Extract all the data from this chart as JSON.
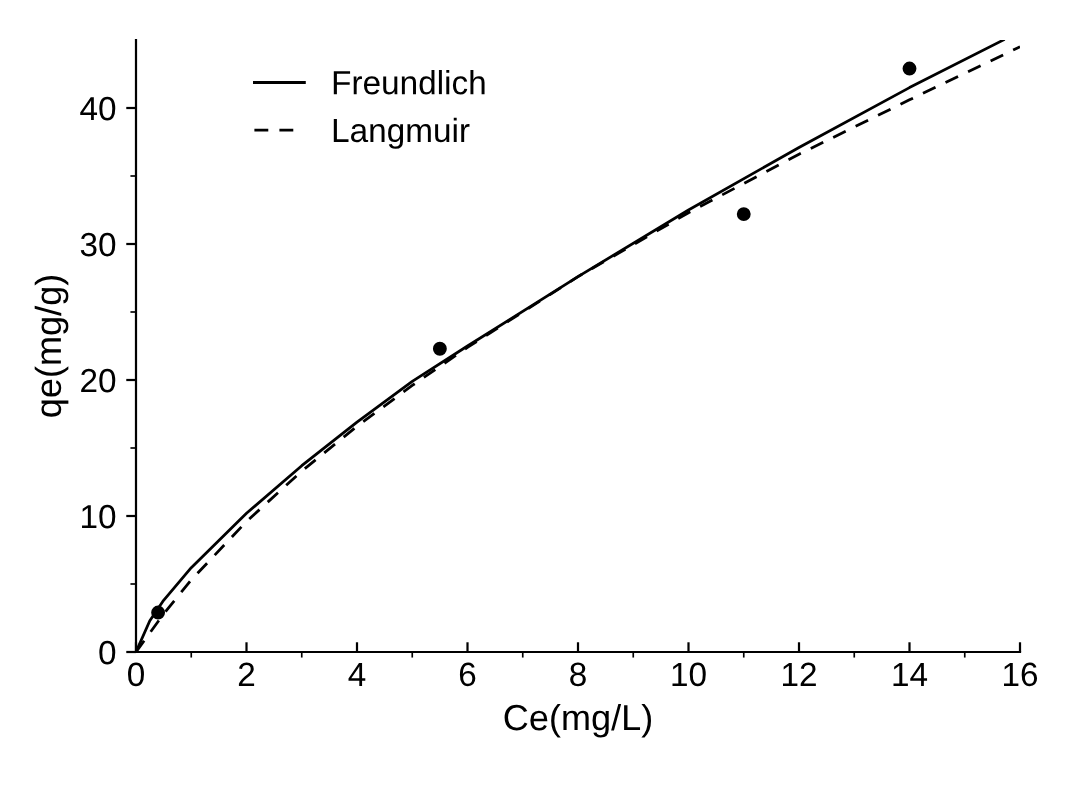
{
  "chart_data": {
    "type": "line",
    "xlabel": "Ce(mg/L)",
    "ylabel": "qe(mg/g)",
    "xlim": [
      0,
      16
    ],
    "ylim": [
      0,
      45
    ],
    "xticks": [
      0,
      {
        "value": 1,
        "label": null
      },
      2,
      {
        "value": 3,
        "label": null
      },
      4,
      {
        "value": 5,
        "label": null
      },
      6,
      {
        "value": 7,
        "label": null
      },
      8,
      {
        "value": 9,
        "label": null
      },
      10,
      {
        "value": 11,
        "label": null
      },
      12,
      {
        "value": 13,
        "label": null
      },
      14,
      {
        "value": 15,
        "label": null
      },
      16
    ],
    "yticks": [
      0,
      {
        "value": 5,
        "label": null
      },
      10,
      {
        "value": 15,
        "label": null
      },
      20,
      {
        "value": 25,
        "label": null
      },
      30,
      {
        "value": 35,
        "label": null
      },
      40
    ],
    "grid": false,
    "legend": "top left",
    "series": [
      {
        "type": "scatter",
        "color": "#000000",
        "marker": "circle",
        "x": [
          0.4,
          5.5,
          11.0,
          14.0
        ],
        "values": [
          2.9,
          22.3,
          32.2,
          42.9
        ]
      },
      {
        "type": "line",
        "name": "Freundlich",
        "color": "#000000",
        "line_style": "solid",
        "x": [
          0,
          0.25,
          0.5,
          1,
          2,
          3,
          4,
          5,
          6,
          8,
          10,
          12,
          14,
          15.7
        ],
        "values": [
          0,
          2.3,
          3.8,
          6.2,
          10.2,
          13.7,
          16.9,
          19.9,
          22.5,
          27.6,
          32.5,
          37.1,
          41.5,
          45
        ]
      },
      {
        "type": "line",
        "name": "Langmuir",
        "color": "#000000",
        "line_style": "dashed",
        "x": [
          0,
          0.5,
          1,
          2,
          3,
          4,
          5,
          6,
          8,
          10,
          12,
          14,
          16
        ],
        "values": [
          0,
          2.8,
          5.3,
          9.6,
          13.3,
          16.6,
          19.6,
          22.4,
          27.6,
          32.3,
          36.6,
          40.6,
          44.5
        ]
      }
    ]
  }
}
